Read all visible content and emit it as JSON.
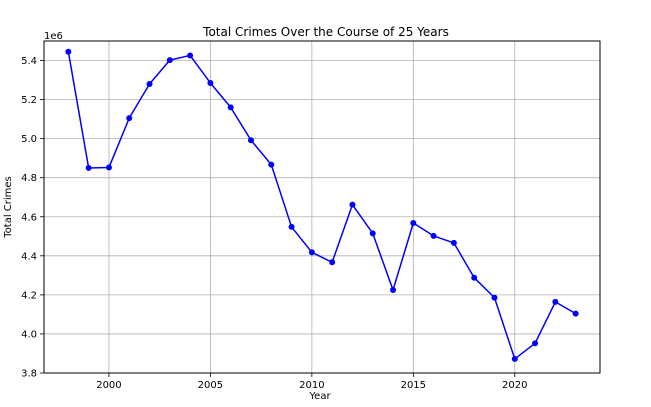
{
  "chart_data": {
    "type": "line",
    "title": "Total Crimes Over the Course of 25 Years",
    "xlabel": "Year",
    "ylabel": "Total Crimes",
    "y_offset_label": "1e6",
    "xlim": [
      1996.8,
      2024.2
    ],
    "ylim": [
      3.8,
      5.5
    ],
    "x_ticks": [
      2000,
      2005,
      2010,
      2015,
      2020
    ],
    "y_ticks": [
      3.8,
      4.0,
      4.2,
      4.4,
      4.6,
      4.8,
      5.0,
      5.2,
      5.4
    ],
    "x_tick_labels": [
      "2000",
      "2005",
      "2010",
      "2015",
      "2020"
    ],
    "y_tick_labels": [
      "3.8",
      "4.0",
      "4.2",
      "4.4",
      "4.6",
      "4.8",
      "5.0",
      "5.2",
      "5.4"
    ],
    "grid": true,
    "series": [
      {
        "color": "#0000ff",
        "marker": "circle",
        "x": [
          1998,
          1999,
          2000,
          2001,
          2002,
          2003,
          2004,
          2005,
          2006,
          2007,
          2008,
          2009,
          2010,
          2011,
          2012,
          2013,
          2014,
          2015,
          2016,
          2017,
          2018,
          2019,
          2020,
          2021,
          2022,
          2023
        ],
        "y": [
          5.445,
          4.85,
          4.852,
          5.105,
          5.28,
          5.402,
          5.426,
          5.285,
          5.16,
          4.992,
          4.867,
          4.548,
          4.418,
          4.367,
          4.662,
          4.515,
          4.225,
          4.568,
          4.502,
          4.466,
          4.288,
          4.186,
          3.872,
          3.952,
          4.164,
          4.104
        ]
      }
    ]
  }
}
